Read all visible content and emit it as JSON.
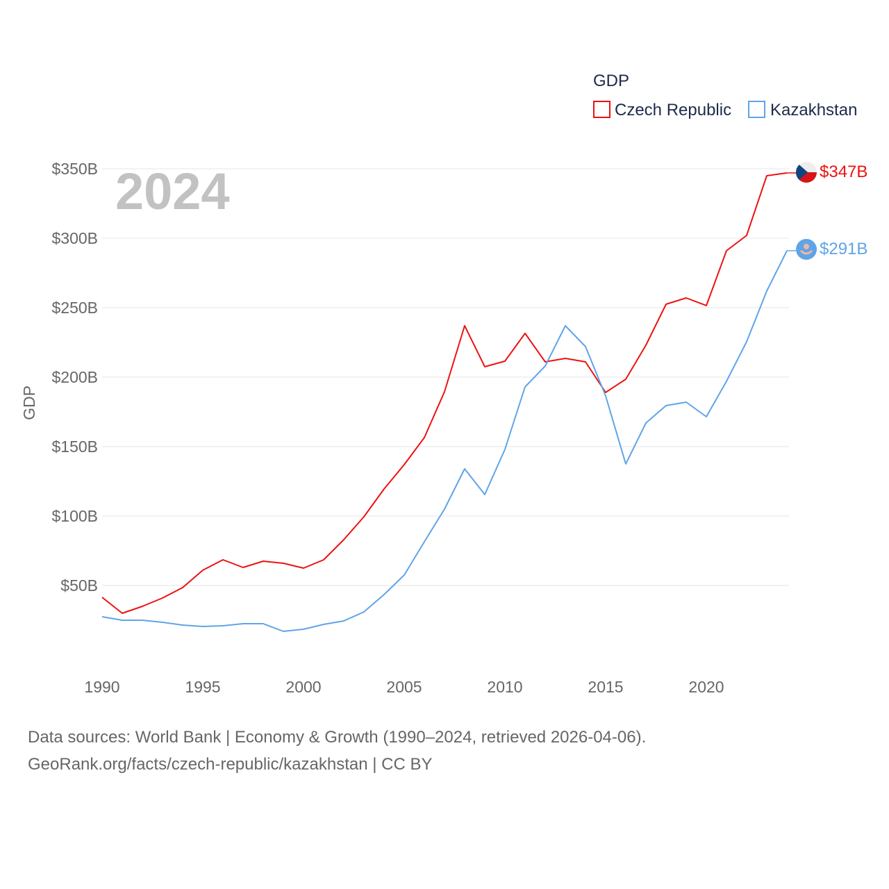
{
  "chart_data": {
    "type": "line",
    "title": "GDP",
    "ylabel": "GDP",
    "xlabel": "",
    "year_label": "2024",
    "ylim": [
      0,
      350
    ],
    "xlim": [
      1990,
      2024
    ],
    "yticks": [
      50,
      100,
      150,
      200,
      250,
      300,
      350
    ],
    "ytick_labels": [
      "$50B",
      "$100B",
      "$150B",
      "$200B",
      "$250B",
      "$300B",
      "$350B"
    ],
    "xticks": [
      1990,
      1995,
      2000,
      2005,
      2010,
      2015,
      2020
    ],
    "xtick_labels": [
      "1990",
      "1995",
      "2000",
      "2005",
      "2010",
      "2015",
      "2020"
    ],
    "grid": true,
    "legend_position": "top-right",
    "x": [
      1990,
      1991,
      1992,
      1993,
      1994,
      1995,
      1996,
      1997,
      1998,
      1999,
      2000,
      2001,
      2002,
      2003,
      2004,
      2005,
      2006,
      2007,
      2008,
      2009,
      2010,
      2011,
      2012,
      2013,
      2014,
      2015,
      2016,
      2017,
      2018,
      2019,
      2020,
      2021,
      2022,
      2023,
      2024
    ],
    "series": [
      {
        "name": "Czech Republic",
        "color": "#ee1111",
        "end_label": "$347B",
        "flag": "czech-flag",
        "values": [
          41.5,
          30,
          35,
          41,
          48.5,
          61,
          68.5,
          63,
          67.5,
          66,
          62.5,
          68.5,
          83,
          99.5,
          119.5,
          137,
          156.5,
          189.5,
          237,
          207.5,
          211.5,
          231.5,
          211,
          213.5,
          211,
          189,
          198.5,
          223,
          252.5,
          257,
          251.5,
          291,
          302,
          345,
          347
        ]
      },
      {
        "name": "Kazakhstan",
        "color": "#5fa4e8",
        "end_label": "$291B",
        "flag": "kazakhstan-flag",
        "values": [
          27.5,
          25,
          25,
          23.5,
          21.5,
          20.5,
          21,
          22.5,
          22.5,
          17,
          18.5,
          22,
          24.5,
          31,
          43.5,
          57.5,
          81.5,
          105,
          134,
          115.5,
          148,
          193,
          208,
          237,
          222,
          186.5,
          137.5,
          167,
          179.5,
          182,
          171.5,
          197,
          225.5,
          262,
          291
        ]
      }
    ]
  },
  "footer": {
    "line1": "Data sources: World Bank | Economy & Growth (1990–2024, retrieved 2026-04-06).",
    "line2": "GeoRank.org/facts/czech-republic/kazakhstan | CC BY"
  }
}
